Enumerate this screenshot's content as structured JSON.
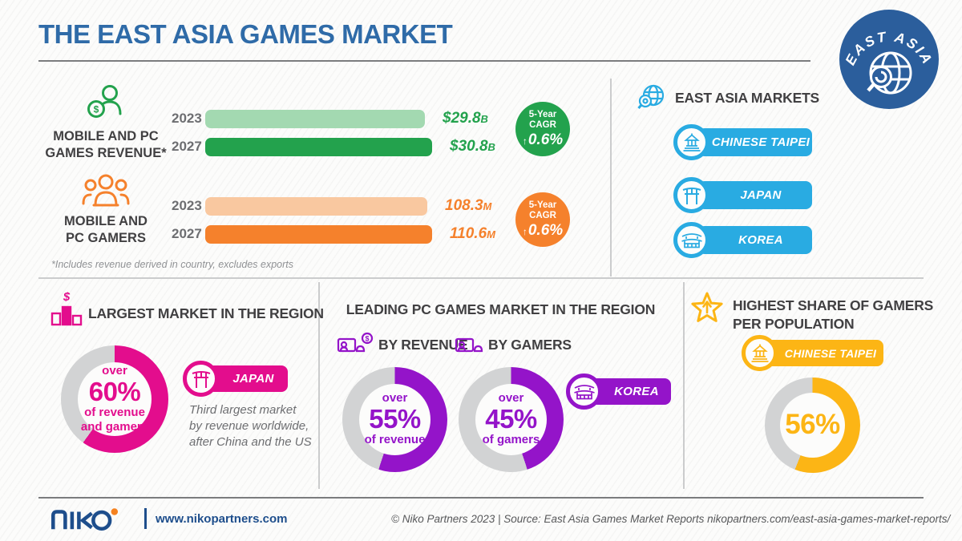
{
  "title": "THE EAST ASIA GAMES MARKET",
  "badge": {
    "label": "EAST ASIA"
  },
  "revenue": {
    "label_line1": "MOBILE AND PC",
    "label_line2": "GAMES REVENUE*",
    "rows": [
      {
        "year": "2023",
        "value": "$29.8",
        "unit": "B"
      },
      {
        "year": "2027",
        "value": "$30.8",
        "unit": "B"
      }
    ],
    "cagr": {
      "line1": "5-Year",
      "line2": "CAGR",
      "arrow": "↑",
      "value": "0.6%"
    }
  },
  "gamers": {
    "label_line1": "MOBILE AND",
    "label_line2": "PC GAMERS",
    "rows": [
      {
        "year": "2023",
        "value": "108.3",
        "unit": "M"
      },
      {
        "year": "2027",
        "value": "110.6",
        "unit": "M"
      }
    ],
    "cagr": {
      "line1": "5-Year",
      "line2": "CAGR",
      "arrow": "↑",
      "value": "0.6%"
    }
  },
  "footnote": "*Includes revenue derived in country,  excludes exports",
  "markets": {
    "title": "EAST ASIA MARKETS",
    "items": [
      {
        "label": "CHINESE TAIPEI",
        "icon": "taipei-landmark-icon"
      },
      {
        "label": "JAPAN",
        "icon": "torii-gate-icon"
      },
      {
        "label": "KOREA",
        "icon": "korean-palace-icon"
      }
    ]
  },
  "largest_market": {
    "title": "LARGEST MARKET IN THE REGION",
    "donut": {
      "over": "over",
      "pct": "60%",
      "line1": "of revenue",
      "line2": "and gamers",
      "value": 60
    },
    "pill": {
      "label": "JAPAN",
      "icon": "torii-gate-icon"
    },
    "note_line1": "Third largest market",
    "note_line2": "by revenue worldwide,",
    "note_line3": "after China and the US"
  },
  "leading_pc": {
    "title": "LEADING PC GAMES MARKET IN THE REGION",
    "by_revenue": {
      "label": "BY REVENUE",
      "icon": "pc-coin-icon"
    },
    "by_gamers": {
      "label": "BY GAMERS",
      "icon": "pc-icon"
    },
    "donut_revenue": {
      "over": "over",
      "pct": "55%",
      "sub": "of revenue",
      "value": 55
    },
    "donut_gamers": {
      "over": "over",
      "pct": "45%",
      "sub": "of gamers",
      "value": 45
    },
    "pill": {
      "label": "KOREA",
      "icon": "korean-palace-icon"
    }
  },
  "highest_share": {
    "title_line1": "HIGHEST SHARE OF GAMERS",
    "title_line2": "PER POPULATION",
    "pill": {
      "label": "CHINESE TAIPEI",
      "icon": "taipei-landmark-icon"
    },
    "donut": {
      "pct": "56%",
      "value": 56
    }
  },
  "footer": {
    "logo_text": "niko",
    "url": "www.nikopartners.com",
    "credit": "© Niko Partners 2023 | Source: East Asia Games Market Reports nikopartners.com/east-asia-games-market-reports/"
  },
  "colors": {
    "title_blue": "#2f6ba8",
    "badge_blue": "#2b5e9c",
    "market_blue": "#29abe2",
    "green": "#23a24d",
    "green_light": "#a3d9b1",
    "orange": "#f5812c",
    "orange_light": "#f9c8a0",
    "magenta": "#e30d8d",
    "purple": "#9414c9",
    "yellow": "#fcb515",
    "donut_track": "#d2d3d4"
  },
  "chart_data": [
    {
      "type": "bar",
      "title": "Mobile and PC games revenue (East Asia, USD billions)",
      "categories": [
        "2023",
        "2027"
      ],
      "values": [
        29.8,
        30.8
      ],
      "value_labels": [
        "$29.8B",
        "$30.8B"
      ],
      "annotation": "5-Year CAGR ↑0.6%"
    },
    {
      "type": "bar",
      "title": "Mobile and PC gamers (East Asia, millions)",
      "categories": [
        "2023",
        "2027"
      ],
      "values": [
        108.3,
        110.6
      ],
      "value_labels": [
        "108.3M",
        "110.6M"
      ],
      "annotation": "5-Year CAGR ↑0.6%"
    },
    {
      "type": "pie",
      "title": "Largest market in the region — Japan",
      "labels": [
        "Japan, over 60% of revenue and gamers",
        "Rest of region"
      ],
      "values": [
        60,
        40
      ]
    },
    {
      "type": "pie",
      "title": "Leading PC games market by revenue — Korea",
      "labels": [
        "Korea, over 55% of revenue",
        "Rest of region"
      ],
      "values": [
        55,
        45
      ]
    },
    {
      "type": "pie",
      "title": "Leading PC games market by gamers — Korea",
      "labels": [
        "Korea, over 45% of gamers",
        "Rest of region"
      ],
      "values": [
        45,
        55
      ]
    },
    {
      "type": "pie",
      "title": "Highest share of gamers per population — Chinese Taipei",
      "labels": [
        "Gamers (56%)",
        "Non-gamers"
      ],
      "values": [
        56,
        44
      ]
    }
  ]
}
